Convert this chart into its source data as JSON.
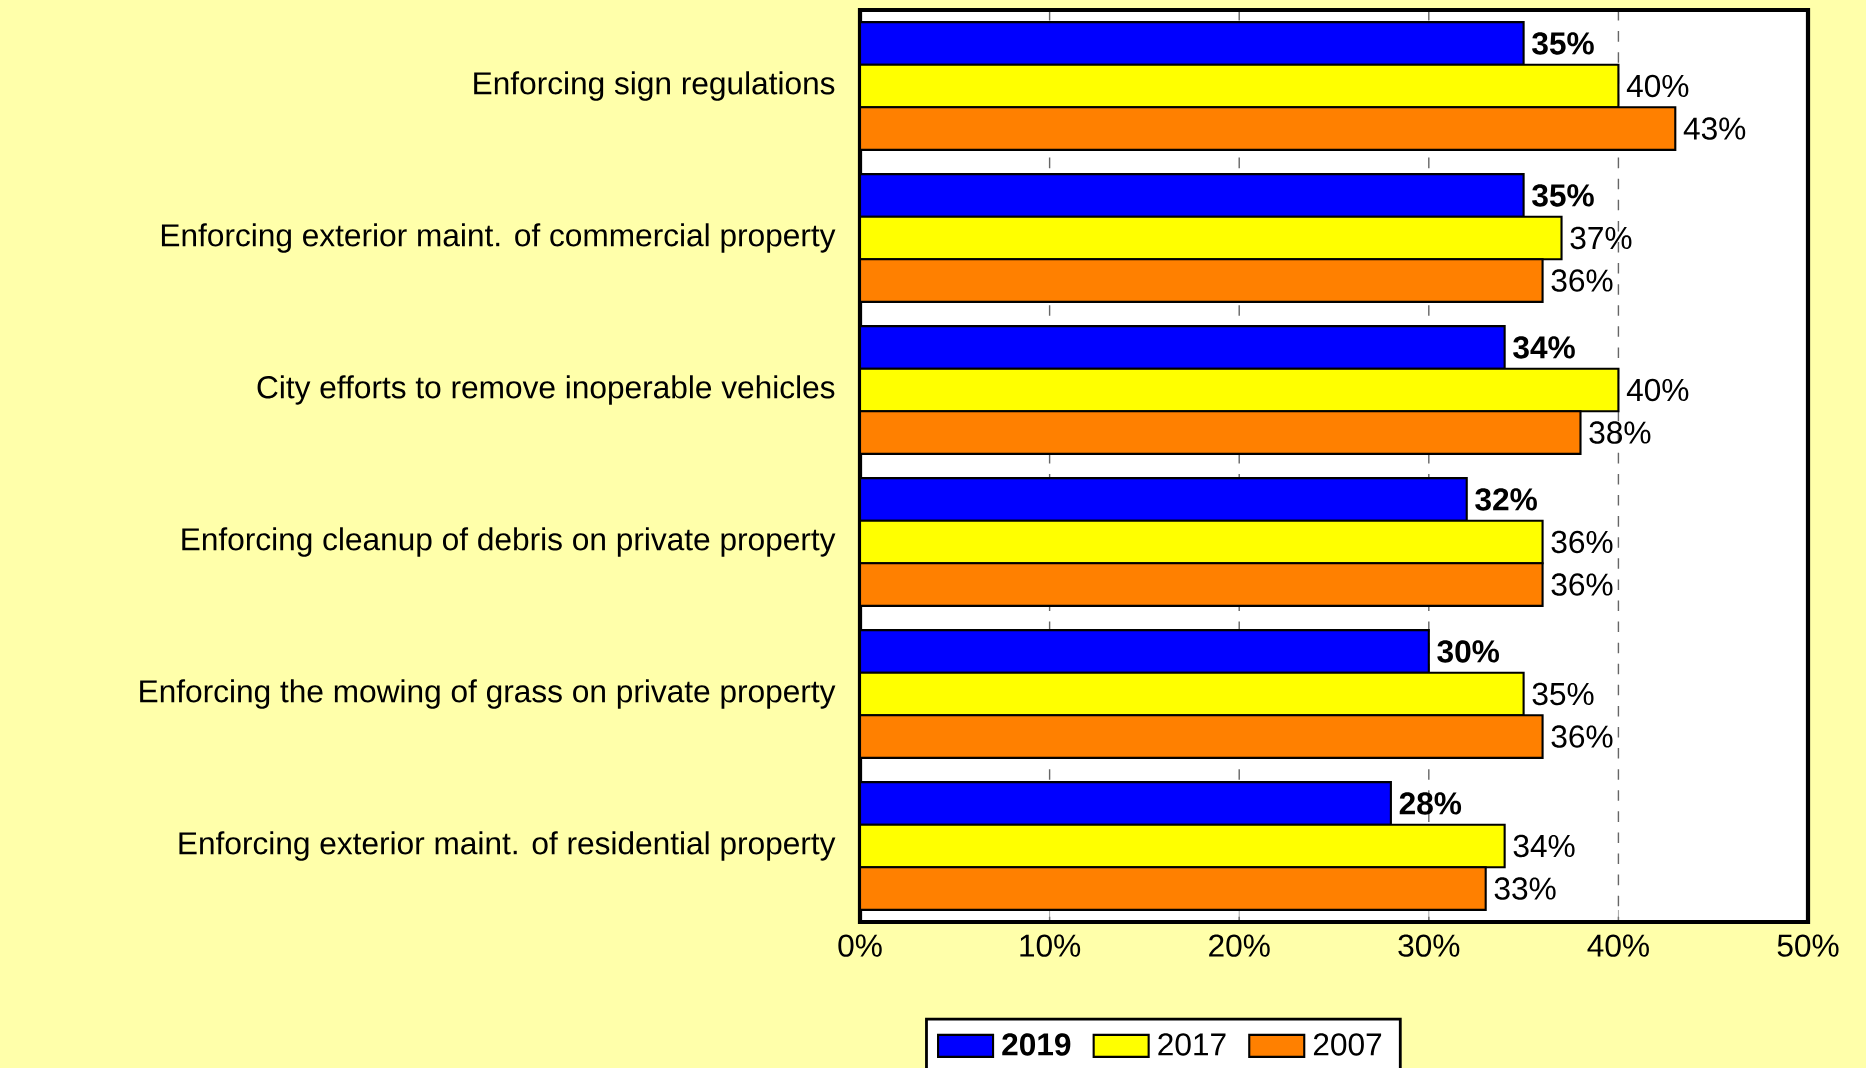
{
  "chart_data": {
    "type": "bar",
    "orientation": "horizontal",
    "categories": [
      "Enforcing sign regulations",
      "Enforcing exterior maint. of commercial property",
      "City efforts to remove inoperable vehicles",
      "Enforcing cleanup of debris on private property",
      "Enforcing the mowing of grass on private property",
      "Enforcing exterior maint. of residential property"
    ],
    "series": [
      {
        "name": "**2019**",
        "color": "#0000ff",
        "values": [
          35,
          35,
          34,
          32,
          30,
          28
        ],
        "value_labels": [
          "**35%**",
          "**35%**",
          "**34%**",
          "**32%**",
          "**30%**",
          "**28%**"
        ]
      },
      {
        "name": "2017",
        "color": "#ffff00",
        "values": [
          40,
          37,
          40,
          36,
          35,
          34
        ],
        "value_labels": [
          "40%",
          "37%",
          "40%",
          "36%",
          "35%",
          "34%"
        ]
      },
      {
        "name": "2007",
        "color": "#ff8000",
        "values": [
          43,
          36,
          38,
          36,
          36,
          33
        ],
        "value_labels": [
          "43%",
          "36%",
          "38%",
          "36%",
          "36%",
          "33%"
        ]
      }
    ],
    "xlim": [
      0,
      50
    ],
    "xticks": [
      {
        "value": 0,
        "label": "0%"
      },
      {
        "value": 10,
        "label": "10%"
      },
      {
        "value": 20,
        "label": "20%"
      },
      {
        "value": 30,
        "label": "30%"
      },
      {
        "value": 40,
        "label": "40%"
      },
      {
        "value": 50,
        "label": "50%"
      }
    ],
    "grid": "x",
    "legend": "bottom"
  }
}
